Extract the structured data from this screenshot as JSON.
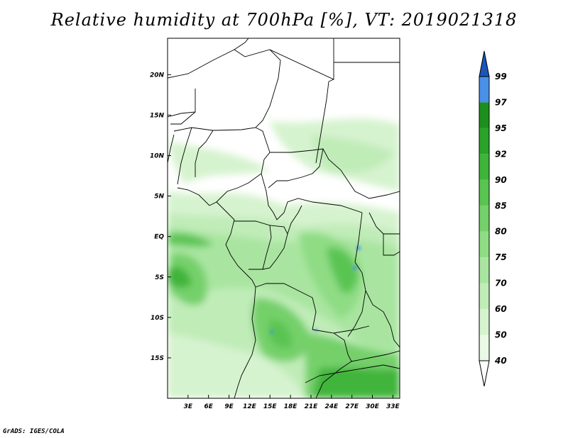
{
  "title": "Relative humidity at 700hPa [%], VT: 2019021318",
  "footer": "GrADS: IGES/COLA",
  "map": {
    "lon_labels": [
      "3E",
      "6E",
      "9E",
      "12E",
      "15E",
      "18E",
      "21E",
      "24E",
      "27E",
      "30E",
      "33E"
    ],
    "lat_labels": [
      "20N",
      "15N",
      "10N",
      "5N",
      "EQ",
      "5S",
      "10S",
      "15S"
    ],
    "lon_range": [
      0,
      34
    ],
    "lat_range": [
      -20,
      24.5
    ]
  },
  "colorbar": {
    "levels": [
      "40",
      "50",
      "60",
      "70",
      "75",
      "80",
      "85",
      "90",
      "92",
      "95",
      "97",
      "99"
    ],
    "colors": [
      "#eaf9e6",
      "#d6f3cf",
      "#c0ecb8",
      "#a9e5a0",
      "#8fdc85",
      "#74d06a",
      "#5ac452",
      "#3fb43a",
      "#2aa32a",
      "#1e8f1e",
      "#4a90e8",
      "#2a6fd6",
      "#1b55b8"
    ]
  }
}
